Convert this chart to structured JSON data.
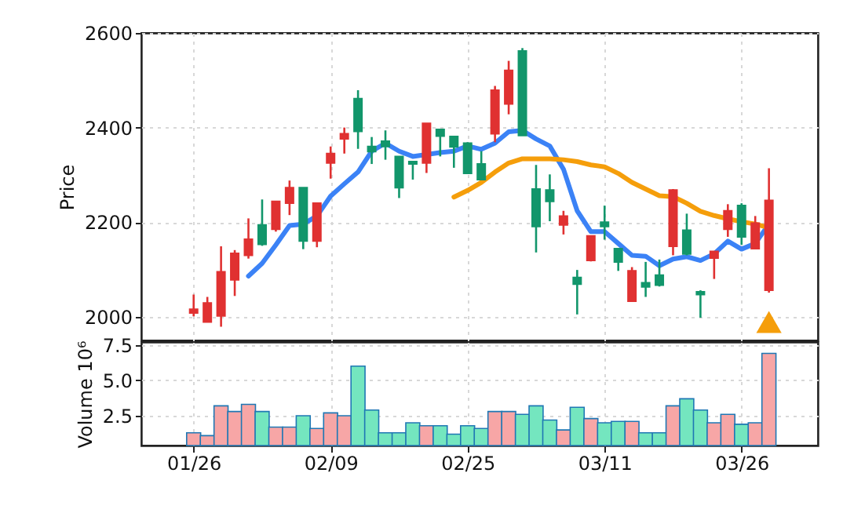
{
  "chart_data": [
    {
      "type": "candlestick",
      "ylabel": "Price",
      "ylim": [
        1950,
        2600
      ],
      "yticks": [
        2000,
        2200,
        2400,
        2600
      ],
      "grid": true,
      "tick_labels": "y",
      "categories": [
        null,
        null,
        null,
        null,
        null,
        null,
        null,
        null,
        null,
        null,
        null,
        null,
        null,
        null,
        null,
        null,
        null,
        null,
        null,
        null,
        null,
        null,
        null,
        null,
        null,
        null,
        null,
        null,
        null,
        null,
        null,
        null,
        null,
        null,
        null,
        null,
        null,
        null,
        null,
        null,
        null,
        null,
        null
      ],
      "ohlc": [
        [
          2008,
          2047,
          2001,
          2016
        ],
        [
          1989,
          2042,
          1989,
          2029
        ],
        [
          2002,
          2149,
          1979,
          2095
        ],
        [
          2078,
          2141,
          2044,
          2134
        ],
        [
          2130,
          2208,
          2123,
          2164
        ],
        [
          2194,
          2248,
          2150,
          2153
        ],
        [
          2185,
          2244,
          2180,
          2244
        ],
        [
          2240,
          2288,
          2215,
          2273
        ],
        [
          2273,
          2273,
          2143,
          2160
        ],
        [
          2160,
          2240,
          2147,
          2240
        ],
        [
          2325,
          2360,
          2292,
          2345
        ],
        [
          2376,
          2400,
          2345,
          2387
        ],
        [
          2461,
          2479,
          2355,
          2392
        ],
        [
          2360,
          2380,
          2323,
          2349
        ],
        [
          2371,
          2394,
          2332,
          2360
        ],
        [
          2339,
          2339,
          2251,
          2273
        ],
        [
          2328,
          2328,
          2290,
          2323
        ],
        [
          2325,
          2409,
          2304,
          2409
        ],
        [
          2396,
          2396,
          2339,
          2382
        ],
        [
          2381,
          2381,
          2315,
          2359
        ],
        [
          2367,
          2369,
          2303,
          2303
        ],
        [
          2323,
          2350,
          2290,
          2290
        ],
        [
          2387,
          2488,
          2369,
          2479
        ],
        [
          2450,
          2541,
          2428,
          2521
        ],
        [
          2562,
          2568,
          2383,
          2383
        ],
        [
          2270,
          2321,
          2136,
          2191
        ],
        [
          2268,
          2301,
          2202,
          2244
        ],
        [
          2194,
          2224,
          2174,
          2213
        ],
        [
          2083,
          2099,
          2005,
          2069
        ],
        [
          2119,
          2171,
          2117,
          2171
        ],
        [
          2200,
          2235,
          2163,
          2191
        ],
        [
          2144,
          2144,
          2097,
          2116
        ],
        [
          2033,
          2105,
          2033,
          2097
        ],
        [
          2072,
          2116,
          2042,
          2063
        ],
        [
          2088,
          2121,
          2064,
          2067
        ],
        [
          2149,
          2270,
          2130,
          2268
        ],
        [
          2183,
          2218,
          2130,
          2133
        ],
        [
          2053,
          2056,
          1998,
          2047
        ],
        [
          2124,
          2138,
          2080,
          2138
        ],
        [
          2185,
          2238,
          2169,
          2224
        ],
        [
          2235,
          2240,
          2152,
          2169
        ],
        [
          2144,
          2213,
          2144,
          2198
        ],
        [
          2056,
          2314,
          2051,
          2246
        ]
      ],
      "colors": [
        "#e03131",
        "#e03131",
        "#e03131",
        "#e03131",
        "#e03131",
        "#12966b",
        "#e03131",
        "#e03131",
        "#12966b",
        "#e03131",
        "#e03131",
        "#e03131",
        "#12966b",
        "#12966b",
        "#12966b",
        "#12966b",
        "#12966b",
        "#e03131",
        "#12966b",
        "#12966b",
        "#12966b",
        "#12966b",
        "#e03131",
        "#e03131",
        "#12966b",
        "#12966b",
        "#12966b",
        "#e03131",
        "#12966b",
        "#e03131",
        "#12966b",
        "#12966b",
        "#e03131",
        "#12966b",
        "#12966b",
        "#e03131",
        "#12966b",
        "#12966b",
        "#e03131",
        "#e03131",
        "#12966b",
        "#e03131",
        "#e03131"
      ],
      "series": [
        {
          "type": "line",
          "color": "#3b82f6",
          "values": [
            null,
            null,
            null,
            null,
            2086,
            2113,
            2152,
            2193,
            2196,
            2213,
            2255,
            2281,
            2306,
            2350,
            2367,
            2350,
            2339,
            2343,
            2347,
            2350,
            2361,
            2354,
            2367,
            2391,
            2394,
            2376,
            2361,
            2312,
            2224,
            2180,
            2180,
            2155,
            2130,
            2128,
            2108,
            2122,
            2127,
            2119,
            2133,
            2160,
            2143,
            2155,
            2196
          ]
        },
        {
          "type": "line",
          "color": "#f59e0b",
          "values": [
            null,
            null,
            null,
            null,
            null,
            null,
            null,
            null,
            null,
            null,
            null,
            null,
            null,
            null,
            null,
            null,
            null,
            null,
            null,
            2253,
            2267,
            2284,
            2306,
            2325,
            2334,
            2334,
            2334,
            2332,
            2328,
            2321,
            2317,
            2303,
            2284,
            2270,
            2256,
            2254,
            2240,
            2223,
            2214,
            2207,
            2201,
            2196,
            2188
          ]
        },
        {
          "type": "scatter",
          "marker": "triangle",
          "color": "#f59e0b",
          "values": [
            null,
            null,
            null,
            null,
            null,
            null,
            null,
            null,
            null,
            null,
            null,
            null,
            null,
            null,
            null,
            null,
            null,
            null,
            null,
            null,
            null,
            null,
            null,
            null,
            null,
            null,
            null,
            null,
            null,
            null,
            null,
            null,
            null,
            null,
            null,
            null,
            null,
            null,
            null,
            null,
            null,
            null,
            1989
          ]
        }
      ]
    },
    {
      "type": "bar",
      "ylabel": "Volume  10⁶",
      "ylim": [
        0.4,
        7.7
      ],
      "yticks": [
        {
          "value": 2.5,
          "label": "2.5"
        },
        {
          "value": 5,
          "label": "5.0"
        },
        {
          "value": 7.5,
          "label": "7.5"
        }
      ],
      "grid": true,
      "categories": [
        "01/26",
        null,
        null,
        null,
        null,
        null,
        null,
        null,
        null,
        null,
        "02/09",
        null,
        null,
        null,
        null,
        null,
        null,
        null,
        null,
        null,
        "02/25",
        null,
        null,
        null,
        null,
        null,
        null,
        null,
        null,
        null,
        "03/11",
        null,
        null,
        null,
        null,
        null,
        null,
        null,
        null,
        null,
        "03/26",
        null,
        null
      ],
      "values": [
        1.3,
        1.1,
        3.2,
        2.8,
        3.3,
        2.8,
        1.7,
        1.7,
        2.5,
        1.6,
        2.7,
        2.5,
        6.0,
        2.9,
        1.3,
        1.3,
        2.0,
        1.8,
        1.8,
        1.2,
        1.8,
        1.6,
        2.8,
        2.8,
        2.6,
        3.2,
        2.2,
        1.5,
        3.1,
        2.3,
        2.0,
        2.1,
        2.1,
        1.3,
        1.3,
        3.2,
        3.7,
        2.9,
        2.0,
        2.6,
        1.9,
        2.0,
        6.9
      ],
      "colors": [
        "#f7a6a6",
        "#f7a6a6",
        "#f7a6a6",
        "#f7a6a6",
        "#f7a6a6",
        "#74e6bf",
        "#f7a6a6",
        "#f7a6a6",
        "#74e6bf",
        "#f7a6a6",
        "#f7a6a6",
        "#f7a6a6",
        "#74e6bf",
        "#74e6bf",
        "#74e6bf",
        "#74e6bf",
        "#74e6bf",
        "#f7a6a6",
        "#74e6bf",
        "#74e6bf",
        "#74e6bf",
        "#74e6bf",
        "#f7a6a6",
        "#f7a6a6",
        "#74e6bf",
        "#74e6bf",
        "#74e6bf",
        "#f7a6a6",
        "#74e6bf",
        "#f7a6a6",
        "#74e6bf",
        "#74e6bf",
        "#f7a6a6",
        "#74e6bf",
        "#74e6bf",
        "#f7a6a6",
        "#74e6bf",
        "#74e6bf",
        "#f7a6a6",
        "#f7a6a6",
        "#74e6bf",
        "#f7a6a6",
        "#f7a6a6"
      ]
    }
  ]
}
